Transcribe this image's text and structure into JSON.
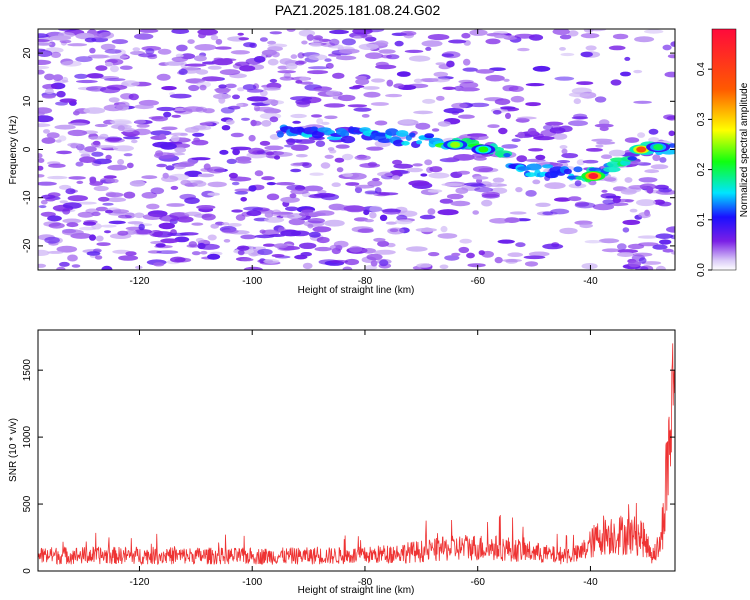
{
  "title": "PAZ1.2025.181.08.24.G02",
  "chart_data": [
    {
      "type": "heatmap",
      "xlabel": "Height of straight line (km)",
      "ylabel": "Frequency (Hz)",
      "xlim": [
        -138,
        -25
      ],
      "ylim": [
        -25,
        25
      ],
      "xticks": [
        "-120",
        "-100",
        "-80",
        "-60",
        "-40"
      ],
      "yticks": [
        "-20",
        "-10",
        "0",
        "10",
        "20"
      ],
      "colorbar": {
        "label": "Normalized spectral amplitude",
        "range": [
          0,
          0.48
        ],
        "ticks": [
          "0.0",
          "0.1",
          "0.2",
          "0.3",
          "0.4"
        ],
        "colormap": [
          "#ffffff",
          "#d9c9f7",
          "#7a1fe6",
          "#1a10ff",
          "#00e5ff",
          "#10ff10",
          "#ffff00",
          "#ff5a00",
          "#ff0a3c"
        ]
      },
      "ridge": {
        "description_points_x": [
          -95,
          -80,
          -65,
          -58,
          -52,
          -40,
          -30,
          -25
        ],
        "description_points_y": [
          3.5,
          3,
          1.5,
          0,
          -4,
          -5,
          0,
          0.5
        ]
      },
      "hot_spots": [
        {
          "x": -64,
          "y": 1,
          "value": 0.25
        },
        {
          "x": -59,
          "y": 0,
          "value": 0.22
        },
        {
          "x": -39.5,
          "y": -5.5,
          "value": 0.46
        },
        {
          "x": -31,
          "y": 0,
          "value": 0.38
        },
        {
          "x": -28,
          "y": 0.5,
          "value": 0.2
        }
      ]
    },
    {
      "type": "line",
      "xlabel": "Height of straight line (km)",
      "ylabel": "SNR (10 * v/v)",
      "xlim": [
        -138,
        -25
      ],
      "ylim": [
        0,
        1800
      ],
      "xticks": [
        "-120",
        "-100",
        "-80",
        "-60",
        "-40"
      ],
      "yticks": [
        "0",
        "500",
        "1000",
        "1500"
      ],
      "color": "#ee3333",
      "envelope": {
        "x": [
          -138,
          -120,
          -100,
          -80,
          -70,
          -62,
          -55,
          -46,
          -42,
          -38,
          -34,
          -31,
          -29,
          -27.5,
          -26,
          -25.2
        ],
        "base": [
          110,
          110,
          105,
          110,
          140,
          170,
          160,
          110,
          120,
          260,
          260,
          250,
          110,
          200,
          900,
          1750
        ]
      }
    }
  ]
}
